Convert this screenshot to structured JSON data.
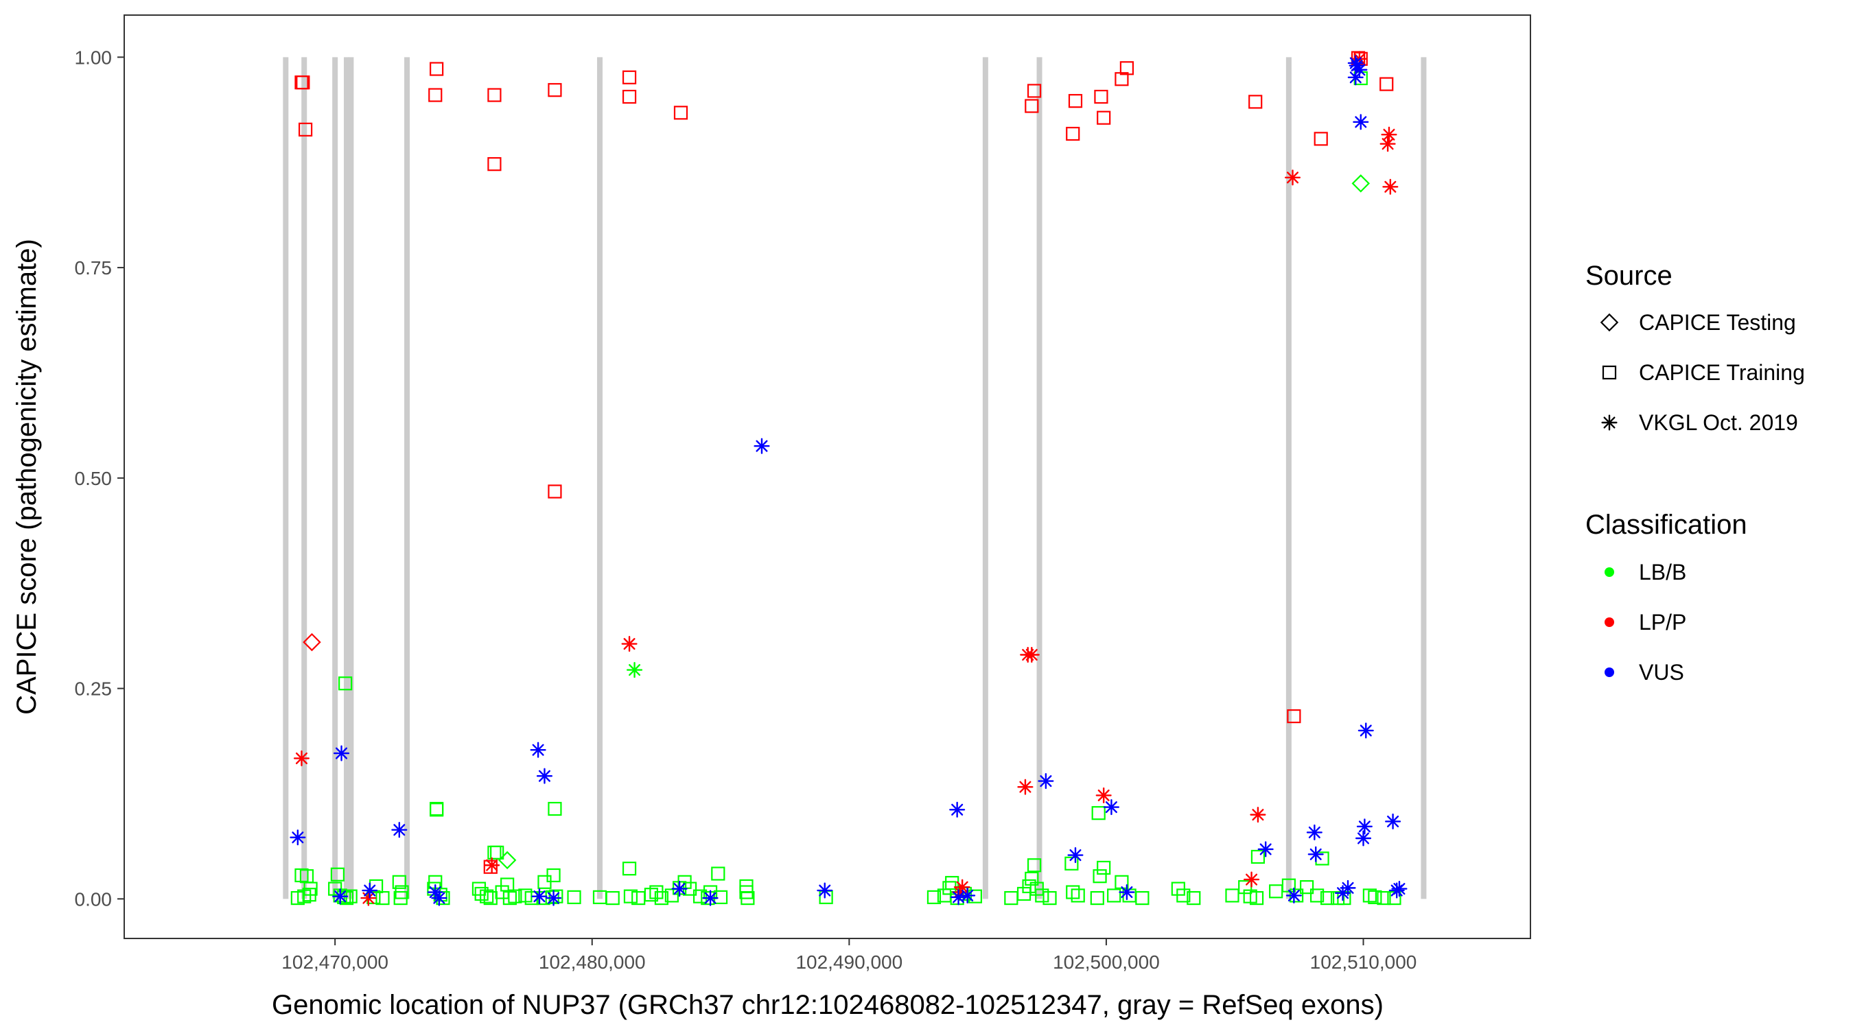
{
  "chart_data": {
    "type": "scatter",
    "xlabel": "Genomic location of NUP37 (GRCh37 chr12:102468082-102512347, gray = RefSeq exons)",
    "ylabel": "CAPICE score (pathogenicity estimate)",
    "xlim": [
      102461800,
      102516500
    ],
    "ylim": [
      -0.047,
      1.05
    ],
    "x_ticks": [
      102470000,
      102480000,
      102490000,
      102500000,
      102510000
    ],
    "x_tick_labels": [
      "102,470,000",
      "102,480,000",
      "102,490,000",
      "102,500,000",
      "102,510,000"
    ],
    "y_ticks": [
      0,
      0.25,
      0.5,
      0.75,
      1.0
    ],
    "y_tick_labels": [
      "0.00",
      "0.25",
      "0.50",
      "0.75",
      "1.00"
    ],
    "exons": [
      102468082,
      102468800,
      102470000,
      102470450,
      102470620,
      102472800,
      102480300,
      102495300,
      102497400,
      102507100,
      102512347
    ],
    "colors": {
      "LB/B": "#00ff00",
      "LP/P": "#ff0000",
      "VUS": "#0000ff",
      "exon": "#cccccc"
    },
    "legend": {
      "source_title": "Source",
      "source_items": [
        {
          "label": "CAPICE Testing",
          "shape": "diamond"
        },
        {
          "label": "CAPICE Training",
          "shape": "square"
        },
        {
          "label": "VKGL Oct. 2019",
          "shape": "star"
        }
      ],
      "class_title": "Classification",
      "class_items": [
        {
          "label": "LB/B",
          "key": "LB/B"
        },
        {
          "label": "LP/P",
          "key": "LP/P"
        },
        {
          "label": "VUS",
          "key": "VUS"
        }
      ]
    },
    "series": [
      {
        "name": "CAPICE Training LP/P",
        "shape": "square",
        "class": "LP/P",
        "points": [
          [
            102468700,
            0.97
          ],
          [
            102468750,
            0.97
          ],
          [
            102468850,
            0.914
          ],
          [
            102473900,
            0.955
          ],
          [
            102473950,
            0.986
          ],
          [
            102476200,
            0.955
          ],
          [
            102476200,
            0.873
          ],
          [
            102478550,
            0.961
          ],
          [
            102478550,
            0.484
          ],
          [
            102481450,
            0.976
          ],
          [
            102481450,
            0.953
          ],
          [
            102483450,
            0.934
          ],
          [
            102497100,
            0.942
          ],
          [
            102497200,
            0.96
          ],
          [
            102498700,
            0.909
          ],
          [
            102498800,
            0.948
          ],
          [
            102499800,
            0.953
          ],
          [
            102499900,
            0.928
          ],
          [
            102500600,
            0.974
          ],
          [
            102500800,
            0.987
          ],
          [
            102505800,
            0.947
          ],
          [
            102507300,
            0.217
          ],
          [
            102508350,
            0.903
          ],
          [
            102509800,
            0.999
          ],
          [
            102509900,
            0.998
          ],
          [
            102510900,
            0.968
          ],
          [
            102476050,
            0.038
          ]
        ]
      },
      {
        "name": "CAPICE Training LB/B",
        "shape": "square",
        "class": "LB/B",
        "points": [
          [
            102468700,
            0.028
          ],
          [
            102468900,
            0.027
          ],
          [
            102468550,
            0.001
          ],
          [
            102468800,
            0.003
          ],
          [
            102469000,
            0.005
          ],
          [
            102469050,
            0.012
          ],
          [
            102470400,
            0.256
          ],
          [
            102470100,
            0.029
          ],
          [
            102470000,
            0.012
          ],
          [
            102470200,
            0.004
          ],
          [
            102470350,
            0.002
          ],
          [
            102470450,
            0.001
          ],
          [
            102470600,
            0.003
          ],
          [
            102471600,
            0.015
          ],
          [
            102471500,
            0.002
          ],
          [
            102471850,
            0.001
          ],
          [
            102472500,
            0.02
          ],
          [
            102472600,
            0.008
          ],
          [
            102472550,
            0.001
          ],
          [
            102473950,
            0.107
          ],
          [
            102473950,
            0.106
          ],
          [
            102473900,
            0.02
          ],
          [
            102473850,
            0.012
          ],
          [
            102474100,
            0.005
          ],
          [
            102474200,
            0.001
          ],
          [
            102475600,
            0.012
          ],
          [
            102475700,
            0.006
          ],
          [
            102475900,
            0.003
          ],
          [
            102476050,
            0.001
          ],
          [
            102476200,
            0.055
          ],
          [
            102476300,
            0.055
          ],
          [
            102476500,
            0.008
          ],
          [
            102476700,
            0.017
          ],
          [
            102476800,
            0.001
          ],
          [
            102477000,
            0.003
          ],
          [
            102477400,
            0.004
          ],
          [
            102477650,
            0.001
          ],
          [
            102478150,
            0.02
          ],
          [
            102478500,
            0.028
          ],
          [
            102478550,
            0.107
          ],
          [
            102478600,
            0.003
          ],
          [
            102478450,
            0.002
          ],
          [
            102478100,
            0.001
          ],
          [
            102479300,
            0.002
          ],
          [
            102480300,
            0.002
          ],
          [
            102480800,
            0.001
          ],
          [
            102481450,
            0.036
          ],
          [
            102481500,
            0.003
          ],
          [
            102481800,
            0.001
          ],
          [
            102482300,
            0.005
          ],
          [
            102482500,
            0.008
          ],
          [
            102482700,
            0.001
          ],
          [
            102483100,
            0.004
          ],
          [
            102483400,
            0.013
          ],
          [
            102483600,
            0.02
          ],
          [
            102483800,
            0.012
          ],
          [
            102484200,
            0.003
          ],
          [
            102484600,
            0.008
          ],
          [
            102484900,
            0.03
          ],
          [
            102484500,
            0.001
          ],
          [
            102485000,
            0.002
          ],
          [
            102486000,
            0.015
          ],
          [
            102486000,
            0.008
          ],
          [
            102486050,
            0.001
          ],
          [
            102489100,
            0.002
          ],
          [
            102493300,
            0.002
          ],
          [
            102493700,
            0.004
          ],
          [
            102493900,
            0.013
          ],
          [
            102494000,
            0.019
          ],
          [
            102494200,
            0.001
          ],
          [
            102494500,
            0.006
          ],
          [
            102494900,
            0.003
          ],
          [
            102496300,
            0.001
          ],
          [
            102496800,
            0.006
          ],
          [
            102497000,
            0.015
          ],
          [
            102497200,
            0.04
          ],
          [
            102497100,
            0.024
          ],
          [
            102497300,
            0.012
          ],
          [
            102497500,
            0.004
          ],
          [
            102497800,
            0.001
          ],
          [
            102498650,
            0.042
          ],
          [
            102498700,
            0.008
          ],
          [
            102498900,
            0.004
          ],
          [
            102499700,
            0.102
          ],
          [
            102499750,
            0.027
          ],
          [
            102499900,
            0.037
          ],
          [
            102499650,
            0.001
          ],
          [
            102500300,
            0.004
          ],
          [
            102500600,
            0.02
          ],
          [
            102500900,
            0.004
          ],
          [
            102501400,
            0.001
          ],
          [
            102502800,
            0.012
          ],
          [
            102503000,
            0.004
          ],
          [
            102503400,
            0.001
          ],
          [
            102504900,
            0.004
          ],
          [
            102505900,
            0.05
          ],
          [
            102505400,
            0.014
          ],
          [
            102505600,
            0.003
          ],
          [
            102505850,
            0.001
          ],
          [
            102506600,
            0.009
          ],
          [
            102507100,
            0.016
          ],
          [
            102507400,
            0.004
          ],
          [
            102507800,
            0.014
          ],
          [
            102508200,
            0.004
          ],
          [
            102508400,
            0.048
          ],
          [
            102508600,
            0.001
          ],
          [
            102509000,
            0.001
          ],
          [
            102509250,
            0.001
          ],
          [
            102510250,
            0.004
          ],
          [
            102510450,
            0.002
          ],
          [
            102510800,
            0.001
          ],
          [
            102511200,
            0.001
          ],
          [
            102509900,
            0.975
          ]
        ]
      },
      {
        "name": "CAPICE Testing LP/P",
        "shape": "diamond",
        "class": "LP/P",
        "points": [
          [
            102469100,
            0.305
          ]
        ]
      },
      {
        "name": "CAPICE Testing LB/B",
        "shape": "diamond",
        "class": "LB/B",
        "points": [
          [
            102476700,
            0.046
          ],
          [
            102509900,
            0.85
          ]
        ]
      },
      {
        "name": "VKGL Oct. 2019 LP/P",
        "shape": "star",
        "class": "LP/P",
        "points": [
          [
            102468700,
            0.167
          ],
          [
            102471300,
            0.001
          ],
          [
            102476100,
            0.04
          ],
          [
            102481450,
            0.303
          ],
          [
            102494300,
            0.008
          ],
          [
            102494400,
            0.014
          ],
          [
            102496850,
            0.133
          ],
          [
            102496950,
            0.29
          ],
          [
            102497100,
            0.29
          ],
          [
            102499900,
            0.123
          ],
          [
            102505650,
            0.023
          ],
          [
            102505900,
            0.1
          ],
          [
            102507250,
            0.857
          ],
          [
            102510950,
            0.897
          ],
          [
            102511000,
            0.908
          ],
          [
            102511050,
            0.846
          ],
          [
            102509850,
            0.998
          ]
        ]
      },
      {
        "name": "VKGL Oct. 2019 LB/B",
        "shape": "star",
        "class": "LB/B",
        "points": [
          [
            102481650,
            0.272
          ]
        ]
      },
      {
        "name": "VKGL Oct. 2019 VUS",
        "shape": "star",
        "class": "VUS",
        "points": [
          [
            102468550,
            0.073
          ],
          [
            102470250,
            0.173
          ],
          [
            102470200,
            0.003
          ],
          [
            102471350,
            0.01
          ],
          [
            102472500,
            0.082
          ],
          [
            102473900,
            0.008
          ],
          [
            102474050,
            0.001
          ],
          [
            102477900,
            0.177
          ],
          [
            102478150,
            0.146
          ],
          [
            102477950,
            0.003
          ],
          [
            102478500,
            0.001
          ],
          [
            102483400,
            0.012
          ],
          [
            102484600,
            0.001
          ],
          [
            102486600,
            0.538
          ],
          [
            102489050,
            0.01
          ],
          [
            102494200,
            0.106
          ],
          [
            102494250,
            0.002
          ],
          [
            102494600,
            0.004
          ],
          [
            102497650,
            0.14
          ],
          [
            102498800,
            0.052
          ],
          [
            102500200,
            0.109
          ],
          [
            102500800,
            0.008
          ],
          [
            102506200,
            0.059
          ],
          [
            102507300,
            0.004
          ],
          [
            102508100,
            0.079
          ],
          [
            102508150,
            0.053
          ],
          [
            102509200,
            0.007
          ],
          [
            102509400,
            0.013
          ],
          [
            102510000,
            0.072
          ],
          [
            102510050,
            0.086
          ],
          [
            102510100,
            0.2
          ],
          [
            102509700,
            0.976
          ],
          [
            102509750,
            0.99
          ],
          [
            102509850,
            0.985
          ],
          [
            102509900,
            0.923
          ],
          [
            102509700,
            0.993
          ],
          [
            102511150,
            0.092
          ],
          [
            102511300,
            0.01
          ],
          [
            102511400,
            0.012
          ]
        ]
      }
    ]
  }
}
